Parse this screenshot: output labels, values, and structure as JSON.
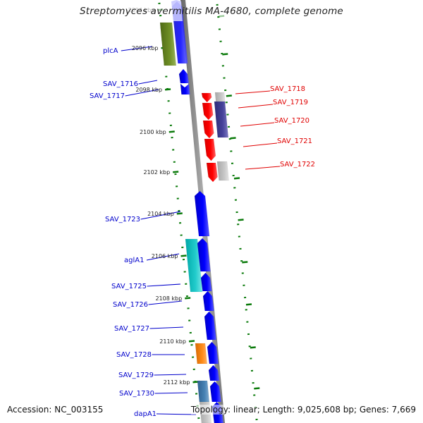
{
  "title": "Streptomyces avermitilis MA-4680, complete genome",
  "footer": {
    "accession": "Accession: NC_003155",
    "summary": "Topology: linear; Length: 9,025,608 bp; Genes: 7,669"
  },
  "colors": {
    "forward_gene": "#0000ff",
    "reverse_gene": "#ff0000",
    "genome_line": "#888888",
    "tick": "#0a7a0a",
    "left_label": "#0000cc",
    "right_label": "#e00000"
  },
  "scale_ticks": [
    {
      "label": "2094 kbp",
      "faded": true
    },
    {
      "label": "2096 kbp"
    },
    {
      "label": "2098 kbp"
    },
    {
      "label": "2100 kbp"
    },
    {
      "label": "2102 kbp"
    },
    {
      "label": "2104 kbp"
    },
    {
      "label": "2106 kbp"
    },
    {
      "label": "2108 kbp"
    },
    {
      "label": "2110 kbp"
    },
    {
      "label": "2112 kbp"
    }
  ],
  "left_labels": [
    {
      "name": "plcA"
    },
    {
      "name": "SAV_1716"
    },
    {
      "name": "SAV_1717"
    },
    {
      "name": "SAV_1723"
    },
    {
      "name": "aglA1"
    },
    {
      "name": "SAV_1725"
    },
    {
      "name": "SAV_1726"
    },
    {
      "name": "SAV_1727"
    },
    {
      "name": "SAV_1728"
    },
    {
      "name": "SAV_1729"
    },
    {
      "name": "SAV_1730"
    },
    {
      "name": "dapA1"
    }
  ],
  "right_labels": [
    {
      "name": "SAV_1718"
    },
    {
      "name": "SAV_1719"
    },
    {
      "name": "SAV_1720"
    },
    {
      "name": "SAV_1721"
    },
    {
      "name": "SAV_1722"
    }
  ]
}
